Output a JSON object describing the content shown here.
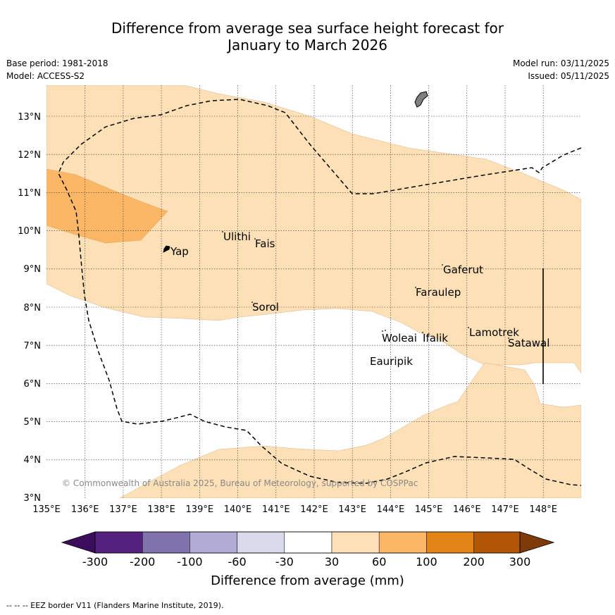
{
  "title": {
    "line1": "Difference from average sea surface height forecast for",
    "line2": "January to March 2026"
  },
  "meta": {
    "base_period": "Base period: 1981-2018",
    "model": "Model: ACCESS-S2",
    "model_run": "Model run: 03/11/2025",
    "issued": "Issued: 05/11/2025"
  },
  "map": {
    "lon_labels": [
      "135°E",
      "136°E",
      "137°E",
      "138°E",
      "139°E",
      "140°E",
      "141°E",
      "142°E",
      "143°E",
      "144°E",
      "145°E",
      "146°E",
      "147°E",
      "148°E"
    ],
    "lat_labels": [
      "3°N",
      "4°N",
      "5°N",
      "6°N",
      "7°N",
      "8°N",
      "9°N",
      "10°N",
      "11°N",
      "12°N",
      "13°N"
    ],
    "places": {
      "yap": "Yap",
      "ulithi": "Ulithi",
      "fais": "Fais",
      "sorol": "Sorol",
      "gaferut": "Gaferut",
      "faraulep": "Faraulep",
      "woleai": "Woleai",
      "ifalik": "Ifalik",
      "eauripik": "Eauripik",
      "lamotrek": "Lamotrek",
      "satawal": "Satawal"
    },
    "copyright": "© Commonwealth of Australia 2025, Bureau of Meteorology, supported by COSPPac",
    "colors": {
      "band_30_60": "#fde0b6",
      "band_60_100": "#fbb766",
      "land": "#808080"
    }
  },
  "colorbar": {
    "ticks": [
      "-300",
      "-200",
      "-100",
      "-60",
      "-30",
      "30",
      "60",
      "100",
      "200",
      "300"
    ],
    "colors": [
      "#3b0d5c",
      "#55217f",
      "#8072ad",
      "#b2abd3",
      "#d8daeb",
      "#ffffff",
      "#fde0b6",
      "#fbb766",
      "#e18316",
      "#b15605",
      "#7f3a09"
    ],
    "label": "Difference from average (mm)"
  },
  "footer": "-- -- -- EEZ border V11 (Flanders Marine Institute, 2019)."
}
